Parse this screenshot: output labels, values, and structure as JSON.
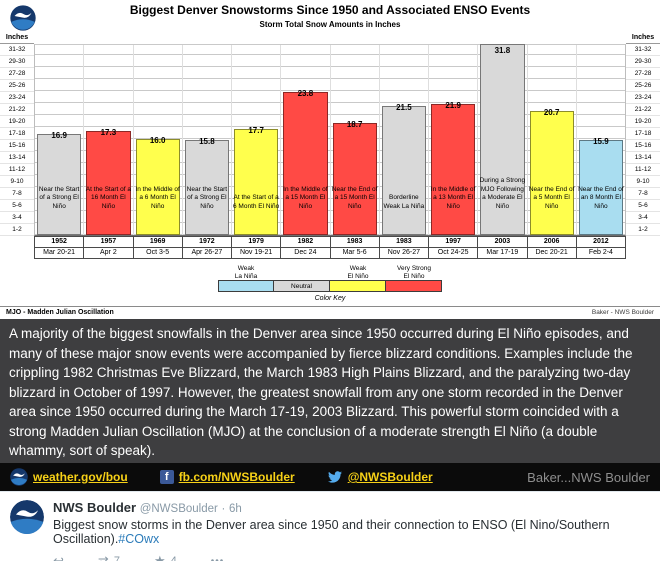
{
  "chart_data": {
    "type": "bar",
    "title": "Biggest Denver Snowstorms Since 1950 and Associated ENSO Events",
    "subtitle": "Storm Total Snow Amounts in Inches",
    "ylabel": "Inches",
    "ylim": [
      0,
      32
    ],
    "grid": true,
    "legend_position": "bottom",
    "y_ticks": [
      "31-32",
      "29-30",
      "27-28",
      "25-26",
      "23-24",
      "21-22",
      "19-20",
      "17-18",
      "15-16",
      "13-14",
      "11-12",
      "9-10",
      "7-8",
      "5-6",
      "3-4",
      "1-2"
    ],
    "colors": {
      "weak_la_nina": "#a9ddf0",
      "neutral": "#d9d9d9",
      "weak_el_nino": "#ffff4d",
      "very_strong_el_nino": "#ff4a45"
    },
    "legend": [
      {
        "label": "Weak\nLa Niña",
        "category": "weak_la_nina",
        "label_inside": false
      },
      {
        "label": "Neutral",
        "category": "neutral",
        "label_inside": true
      },
      {
        "label": "Weak\nEl Niño",
        "category": "weak_el_nino",
        "label_inside": false
      },
      {
        "label": "Very Strong\nEl Niño",
        "category": "very_strong_el_nino",
        "label_inside": false
      }
    ],
    "color_key_label": "Color Key",
    "footnote": "MJO - Madden Julian Oscillation",
    "credit": "Baker - NWS Boulder",
    "bars": [
      {
        "value": 16.9,
        "label": "16.9",
        "category": "neutral",
        "note": "Near the Start of a Strong El Niño",
        "year": "1952",
        "date": "Mar 20-21"
      },
      {
        "value": 17.3,
        "label": "17.3",
        "category": "very_strong_el_nino",
        "note": "At the Start of a 16 Month El Niño",
        "year": "1957",
        "date": "Apr 2"
      },
      {
        "value": 16.0,
        "label": "16.0",
        "category": "weak_el_nino",
        "note": "In the Middle of a 6 Month El Niño",
        "year": "1969",
        "date": "Oct 3-5"
      },
      {
        "value": 15.8,
        "label": "15.8",
        "category": "neutral",
        "note": "Near the Start of a Strong El Niño",
        "year": "1972",
        "date": "Apr 26-27"
      },
      {
        "value": 17.7,
        "label": "17.7",
        "category": "weak_el_nino",
        "note": "At the Start of a 6 Month El Niño",
        "year": "1979",
        "date": "Nov 19-21"
      },
      {
        "value": 23.8,
        "label": "23.8",
        "category": "very_strong_el_nino",
        "note": "In the Middle of a 15 Month El Niño",
        "year": "1982",
        "date": "Dec 24"
      },
      {
        "value": 18.7,
        "label": "18.7",
        "category": "very_strong_el_nino",
        "note": "Near the End of a 15 Month El Niño",
        "year": "1983",
        "date": "Mar 5-6"
      },
      {
        "value": 21.5,
        "label": "21.5",
        "category": "neutral",
        "note": "Borderline Weak La Niña",
        "year": "1983",
        "date": "Nov 26-27"
      },
      {
        "value": 21.9,
        "label": "21.9",
        "category": "very_strong_el_nino",
        "note": "In the Middle of a 13 Month El Niño",
        "year": "1997",
        "date": "Oct 24-25"
      },
      {
        "value": 31.8,
        "label": "31.8",
        "category": "neutral",
        "note": "During a Strong MJO Following a Moderate El Niño",
        "year": "2003",
        "date": "Mar 17-19"
      },
      {
        "value": 20.7,
        "label": "20.7",
        "category": "weak_el_nino",
        "note": "Near the End of a 5 Month El Niño",
        "year": "2006",
        "date": "Dec 20-21"
      },
      {
        "value": 15.9,
        "label": "15.9",
        "category": "weak_la_nina",
        "note": "Near the End of an 8 Month El Niño",
        "year": "2012",
        "date": "Feb 2-4"
      }
    ]
  },
  "caption": {
    "text": "A majority of the biggest snowfalls in the Denver area since 1950 occurred during El Niño episodes, and many of these major snow events were accompanied by fierce blizzard conditions. Examples include the crippling 1982 Christmas Eve Blizzard, the March 1983 High Plains Blizzard, and the paralyzing two-day blizzard in October of 1997.  However, the greatest  snowfall from any one storm recorded in the Denver area since 1950 occurred during the March 17-19, 2003 Blizzard. This powerful storm coincided with a strong Madden Julian Oscillation (MJO) at the conclusion of a moderate strength El Niño (a double whammy, sort of speak)."
  },
  "social_bar": {
    "links": [
      {
        "label": "weather.gov/bou"
      },
      {
        "label": "fb.com/NWSBoulder"
      },
      {
        "label": "@NWSBoulder"
      }
    ],
    "credit": "Baker...NWS Boulder"
  },
  "tweet": {
    "display_name": "NWS Boulder",
    "handle": "@NWSBoulder",
    "separator": "·",
    "time": "6h",
    "text": "Biggest snow storms in the Denver area since 1950 and their connection to ENSO (El Nino/Southern Oscillation).",
    "hashtag": "#COwx",
    "retweet_count": "7",
    "favorite_count": "4"
  },
  "icons": {
    "reply": "↩",
    "retweet": "⇄",
    "favorite": "★",
    "more": "•••",
    "facebook": "f"
  }
}
